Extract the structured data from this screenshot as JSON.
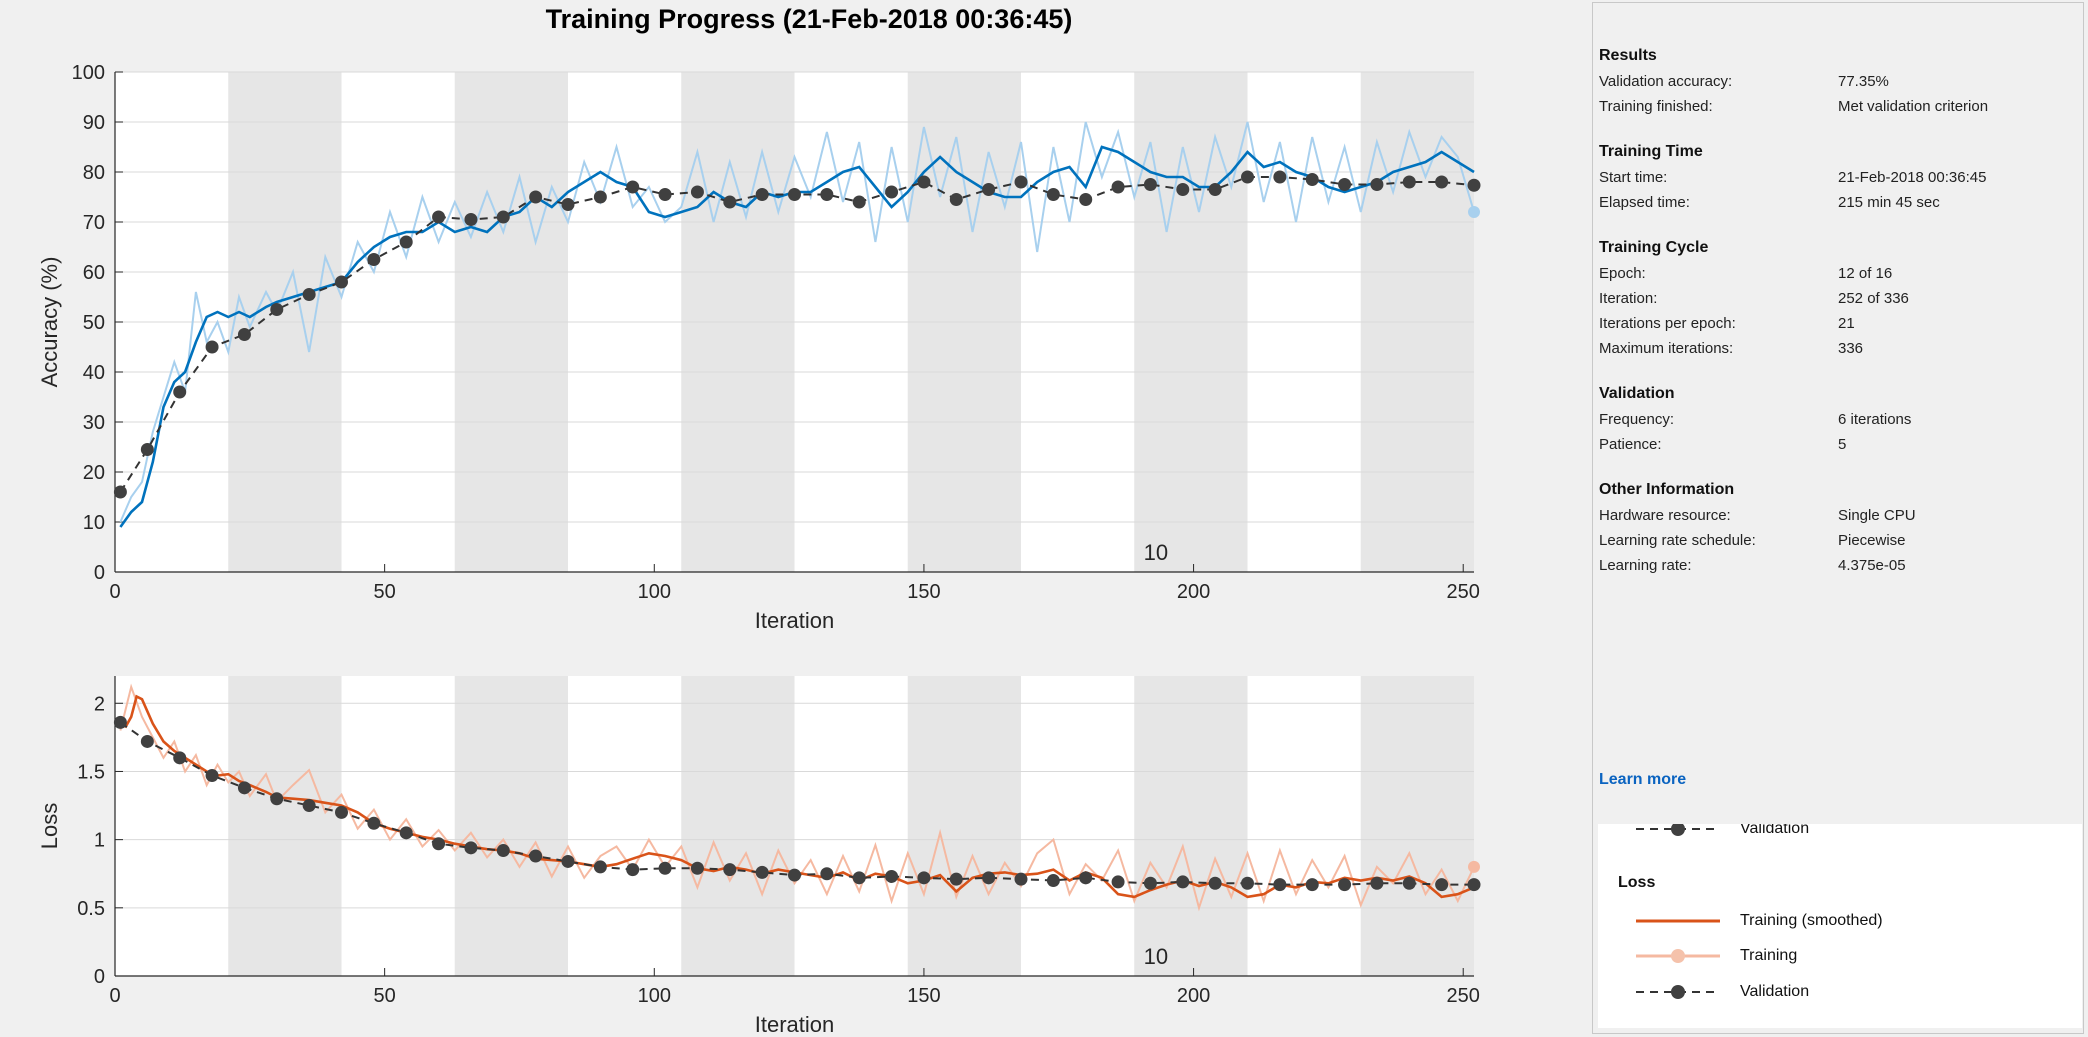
{
  "title": "Training Progress (21-Feb-2018 00:36:45)",
  "colors": {
    "accuracy_smoothed": "#0072bd",
    "accuracy_raw": "#a8d0ee",
    "loss_smoothed": "#d95319",
    "loss_raw": "#f5b9a1",
    "validation": "#404040",
    "epoch_band": "#e6e6e6",
    "link": "#0a63c0"
  },
  "chart_data": [
    {
      "type": "line",
      "name": "accuracy",
      "xlabel": "Iteration",
      "ylabel": "Accuracy (%)",
      "xlim": [
        0,
        252
      ],
      "ylim": [
        0,
        100
      ],
      "xticks": [
        0,
        50,
        100,
        150,
        200,
        250
      ],
      "yticks": [
        0,
        10,
        20,
        30,
        40,
        50,
        60,
        70,
        80,
        90,
        100
      ],
      "epoch_annotation": "10",
      "grid": true,
      "epoch_bands": [
        [
          21,
          42
        ],
        [
          63,
          84
        ],
        [
          105,
          126
        ],
        [
          147,
          168
        ],
        [
          189,
          210
        ],
        [
          231,
          252
        ]
      ],
      "series": [
        {
          "name": "Training (smoothed)",
          "x": [
            1,
            3,
            5,
            7,
            9,
            11,
            13,
            15,
            17,
            19,
            21,
            23,
            25,
            28,
            30,
            33,
            36,
            39,
            42,
            45,
            48,
            51,
            54,
            57,
            60,
            63,
            66,
            69,
            72,
            75,
            78,
            81,
            84,
            87,
            90,
            93,
            96,
            99,
            102,
            105,
            108,
            111,
            114,
            117,
            120,
            123,
            126,
            129,
            132,
            135,
            138,
            141,
            144,
            147,
            150,
            153,
            156,
            159,
            162,
            165,
            168,
            171,
            174,
            177,
            180,
            183,
            186,
            189,
            192,
            195,
            198,
            201,
            204,
            207,
            210,
            213,
            216,
            219,
            222,
            225,
            228,
            231,
            234,
            237,
            240,
            243,
            246,
            249,
            252
          ],
          "y": [
            9,
            12,
            14,
            22,
            33,
            38,
            40,
            46,
            51,
            52,
            51,
            52,
            51,
            53,
            54,
            55,
            56,
            57,
            58,
            62,
            65,
            67,
            68,
            68,
            70,
            68,
            69,
            68,
            71,
            72,
            75,
            73,
            76,
            78,
            80,
            78,
            77,
            72,
            71,
            72,
            73,
            76,
            74,
            73,
            76,
            75,
            76,
            76,
            78,
            80,
            81,
            77,
            73,
            76,
            80,
            83,
            80,
            78,
            76,
            75,
            75,
            78,
            80,
            81,
            77,
            85,
            84,
            82,
            80,
            79,
            79,
            77,
            77,
            80,
            84,
            81,
            82,
            80,
            79,
            77,
            76,
            77,
            78,
            80,
            81,
            82,
            84,
            82,
            80
          ]
        },
        {
          "name": "Training",
          "x": [
            1,
            3,
            5,
            7,
            9,
            11,
            13,
            15,
            17,
            19,
            21,
            23,
            25,
            28,
            30,
            33,
            36,
            39,
            42,
            45,
            48,
            51,
            54,
            57,
            60,
            63,
            66,
            69,
            72,
            75,
            78,
            81,
            84,
            87,
            90,
            93,
            96,
            99,
            102,
            105,
            108,
            111,
            114,
            117,
            120,
            123,
            126,
            129,
            132,
            135,
            138,
            141,
            144,
            147,
            150,
            153,
            156,
            159,
            162,
            165,
            168,
            171,
            174,
            177,
            180,
            183,
            186,
            189,
            192,
            195,
            198,
            201,
            204,
            207,
            210,
            213,
            216,
            219,
            222,
            225,
            228,
            231,
            234,
            237,
            240,
            243,
            246,
            249,
            252
          ],
          "y": [
            10,
            15,
            18,
            28,
            35,
            42,
            36,
            56,
            46,
            50,
            44,
            55,
            49,
            56,
            52,
            60,
            44,
            63,
            55,
            66,
            60,
            72,
            63,
            75,
            66,
            74,
            67,
            76,
            68,
            79,
            66,
            77,
            70,
            82,
            74,
            85,
            73,
            77,
            70,
            73,
            84,
            70,
            82,
            71,
            84,
            72,
            83,
            75,
            88,
            74,
            86,
            66,
            85,
            70,
            89,
            75,
            87,
            68,
            84,
            73,
            86,
            64,
            85,
            70,
            90,
            79,
            88,
            75,
            86,
            68,
            85,
            72,
            87,
            77,
            90,
            74,
            86,
            70,
            87,
            74,
            85,
            72,
            86,
            76,
            88,
            79,
            87,
            83,
            72
          ]
        },
        {
          "name": "Validation",
          "x": [
            1,
            6,
            12,
            18,
            24,
            30,
            36,
            42,
            48,
            54,
            60,
            66,
            72,
            78,
            84,
            90,
            96,
            102,
            108,
            114,
            120,
            126,
            132,
            138,
            144,
            150,
            156,
            162,
            168,
            174,
            180,
            186,
            192,
            198,
            204,
            210,
            216,
            222,
            228,
            234,
            240,
            246,
            252
          ],
          "y": [
            16,
            24.5,
            36,
            45,
            47.5,
            52.5,
            55.5,
            58,
            62.5,
            66,
            71,
            70.5,
            71,
            75,
            73.5,
            75,
            77,
            75.5,
            76,
            74,
            75.5,
            75.5,
            75.5,
            74,
            76,
            78,
            74.5,
            76.5,
            78,
            75.5,
            74.5,
            77,
            77.5,
            76.5,
            76.5,
            79,
            79,
            78.5,
            77.5,
            77.5,
            78,
            78,
            77.35
          ]
        }
      ]
    },
    {
      "type": "line",
      "name": "loss",
      "xlabel": "Iteration",
      "ylabel": "Loss",
      "xlim": [
        0,
        252
      ],
      "ylim": [
        0,
        2.2
      ],
      "xticks": [
        0,
        50,
        100,
        150,
        200,
        250
      ],
      "yticks": [
        0,
        0.5,
        1,
        1.5,
        2
      ],
      "epoch_annotation": "10",
      "grid": true,
      "epoch_bands": [
        [
          21,
          42
        ],
        [
          63,
          84
        ],
        [
          105,
          126
        ],
        [
          147,
          168
        ],
        [
          189,
          210
        ],
        [
          231,
          252
        ]
      ],
      "series": [
        {
          "name": "Training (smoothed)",
          "x": [
            1,
            2,
            3,
            4,
            5,
            7,
            9,
            11,
            13,
            15,
            17,
            19,
            21,
            23,
            25,
            28,
            30,
            33,
            36,
            39,
            42,
            45,
            48,
            51,
            54,
            57,
            60,
            63,
            66,
            69,
            72,
            75,
            78,
            81,
            84,
            87,
            90,
            93,
            96,
            99,
            102,
            105,
            108,
            111,
            114,
            117,
            120,
            123,
            126,
            129,
            132,
            135,
            138,
            141,
            144,
            147,
            150,
            153,
            156,
            159,
            162,
            165,
            168,
            171,
            174,
            177,
            180,
            183,
            186,
            189,
            192,
            195,
            198,
            201,
            204,
            207,
            210,
            213,
            216,
            219,
            222,
            225,
            228,
            231,
            234,
            237,
            240,
            243,
            246,
            249,
            252
          ],
          "y": [
            1.85,
            1.83,
            1.9,
            2.05,
            2.03,
            1.85,
            1.72,
            1.65,
            1.6,
            1.55,
            1.5,
            1.47,
            1.48,
            1.43,
            1.4,
            1.35,
            1.31,
            1.3,
            1.29,
            1.27,
            1.25,
            1.2,
            1.12,
            1.08,
            1.05,
            1.02,
            1.0,
            0.97,
            0.95,
            0.93,
            0.92,
            0.9,
            0.86,
            0.85,
            0.84,
            0.82,
            0.8,
            0.82,
            0.86,
            0.9,
            0.88,
            0.85,
            0.79,
            0.77,
            0.8,
            0.78,
            0.75,
            0.78,
            0.76,
            0.74,
            0.72,
            0.76,
            0.7,
            0.75,
            0.73,
            0.68,
            0.7,
            0.74,
            0.62,
            0.72,
            0.75,
            0.76,
            0.74,
            0.75,
            0.78,
            0.7,
            0.76,
            0.72,
            0.6,
            0.58,
            0.63,
            0.67,
            0.7,
            0.66,
            0.69,
            0.65,
            0.58,
            0.6,
            0.67,
            0.65,
            0.69,
            0.68,
            0.72,
            0.7,
            0.72,
            0.7,
            0.73,
            0.68,
            0.58,
            0.6,
            0.65
          ]
        },
        {
          "name": "Training",
          "x": [
            1,
            3,
            5,
            7,
            9,
            11,
            13,
            15,
            17,
            19,
            21,
            23,
            25,
            28,
            30,
            33,
            36,
            39,
            42,
            45,
            48,
            51,
            54,
            57,
            60,
            63,
            66,
            69,
            72,
            75,
            78,
            81,
            84,
            87,
            90,
            93,
            96,
            99,
            102,
            105,
            108,
            111,
            114,
            117,
            120,
            123,
            126,
            129,
            132,
            135,
            138,
            141,
            144,
            147,
            150,
            153,
            156,
            159,
            162,
            165,
            168,
            171,
            174,
            177,
            180,
            183,
            186,
            189,
            192,
            195,
            198,
            201,
            204,
            207,
            210,
            213,
            216,
            219,
            222,
            225,
            228,
            231,
            234,
            237,
            240,
            243,
            246,
            249,
            252
          ],
          "y": [
            1.8,
            2.12,
            1.9,
            1.75,
            1.6,
            1.72,
            1.5,
            1.62,
            1.4,
            1.55,
            1.42,
            1.5,
            1.32,
            1.48,
            1.28,
            1.4,
            1.51,
            1.2,
            1.33,
            1.08,
            1.22,
            1.0,
            1.15,
            0.95,
            1.07,
            0.92,
            1.05,
            0.87,
            1.0,
            0.8,
            0.98,
            0.73,
            0.95,
            0.72,
            0.88,
            0.95,
            0.78,
            1.0,
            0.8,
            0.95,
            0.65,
            0.98,
            0.7,
            0.9,
            0.6,
            0.92,
            0.68,
            0.85,
            0.6,
            0.88,
            0.62,
            0.96,
            0.55,
            0.9,
            0.6,
            1.05,
            0.58,
            0.88,
            0.6,
            0.83,
            0.66,
            0.9,
            1.0,
            0.6,
            0.82,
            0.7,
            0.92,
            0.55,
            0.83,
            0.65,
            0.95,
            0.5,
            0.86,
            0.58,
            0.9,
            0.55,
            0.92,
            0.6,
            0.85,
            0.65,
            0.88,
            0.52,
            0.8,
            0.68,
            0.9,
            0.6,
            0.78,
            0.55,
            0.8
          ]
        },
        {
          "name": "Validation",
          "x": [
            1,
            6,
            12,
            18,
            24,
            30,
            36,
            42,
            48,
            54,
            60,
            66,
            72,
            78,
            84,
            90,
            96,
            102,
            108,
            114,
            120,
            126,
            132,
            138,
            144,
            150,
            156,
            162,
            168,
            174,
            180,
            186,
            192,
            198,
            204,
            210,
            216,
            222,
            228,
            234,
            240,
            246,
            252
          ],
          "y": [
            1.86,
            1.72,
            1.6,
            1.47,
            1.38,
            1.3,
            1.25,
            1.2,
            1.12,
            1.05,
            0.97,
            0.94,
            0.92,
            0.88,
            0.84,
            0.8,
            0.78,
            0.79,
            0.79,
            0.78,
            0.76,
            0.74,
            0.75,
            0.72,
            0.73,
            0.72,
            0.71,
            0.72,
            0.71,
            0.7,
            0.72,
            0.69,
            0.68,
            0.69,
            0.68,
            0.68,
            0.67,
            0.67,
            0.67,
            0.68,
            0.68,
            0.67,
            0.67
          ]
        }
      ]
    }
  ],
  "panel": {
    "sections": [
      {
        "heading": "Results",
        "rows": [
          {
            "label": "Validation accuracy:",
            "value": "77.35%"
          },
          {
            "label": "Training finished:",
            "value": "Met validation criterion"
          }
        ]
      },
      {
        "heading": "Training Time",
        "rows": [
          {
            "label": "Start time:",
            "value": "21-Feb-2018 00:36:45"
          },
          {
            "label": "Elapsed time:",
            "value": "215 min 45 sec"
          }
        ]
      },
      {
        "heading": "Training Cycle",
        "rows": [
          {
            "label": "Epoch:",
            "value": "12 of 16"
          },
          {
            "label": "Iteration:",
            "value": "252 of 336"
          },
          {
            "label": "Iterations per epoch:",
            "value": "21"
          },
          {
            "label": "Maximum iterations:",
            "value": "336"
          }
        ]
      },
      {
        "heading": "Validation",
        "rows": [
          {
            "label": "Frequency:",
            "value": "6 iterations"
          },
          {
            "label": "Patience:",
            "value": "5"
          }
        ]
      },
      {
        "heading": "Other Information",
        "rows": [
          {
            "label": "Hardware resource:",
            "value": "Single CPU"
          },
          {
            "label": "Learning rate schedule:",
            "value": "Piecewise"
          },
          {
            "label": "Learning rate:",
            "value": "4.375e-05"
          }
        ]
      }
    ],
    "learn_more": "Learn more",
    "legend": {
      "top_partial_label": "Validation",
      "loss_heading": "Loss",
      "items": [
        {
          "label": "Training (smoothed)",
          "style": "smoothed"
        },
        {
          "label": "Training",
          "style": "raw"
        },
        {
          "label": "Validation",
          "style": "validation"
        }
      ]
    }
  }
}
